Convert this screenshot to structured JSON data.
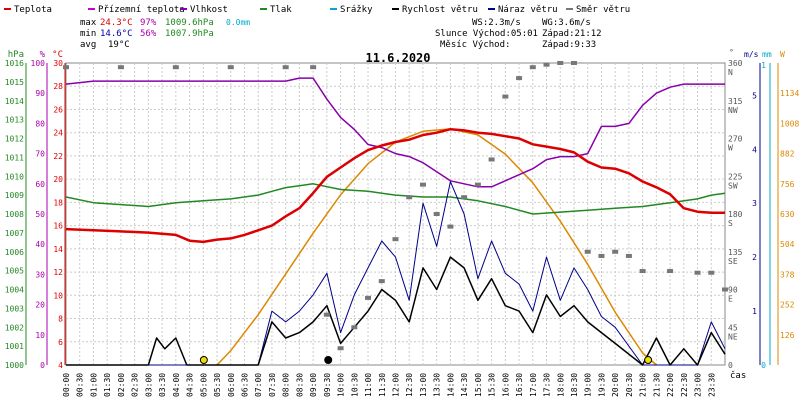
{
  "chart_data": {
    "type": "line",
    "title": "11.6.2020",
    "x_label": "čas",
    "x_range_hours": [
      0,
      24
    ],
    "x_ticks": [
      "00:00",
      "00:30",
      "01:00",
      "01:30",
      "02:00",
      "02:30",
      "03:00",
      "03:30",
      "04:00",
      "04:30",
      "05:00",
      "05:30",
      "06:00",
      "06:30",
      "07:00",
      "07:30",
      "08:00",
      "08:30",
      "09:00",
      "09:30",
      "10:00",
      "10:30",
      "11:00",
      "11:30",
      "12:00",
      "12:30",
      "13:00",
      "13:30",
      "14:00",
      "14:30",
      "15:00",
      "15:30",
      "16:00",
      "16:30",
      "17:00",
      "17:30",
      "18:00",
      "18:30",
      "19:00",
      "19:30",
      "20:00",
      "20:30",
      "21:00",
      "21:30",
      "22:00",
      "22:30",
      "23:00",
      "23:30"
    ],
    "legend": [
      {
        "label": "Teplota",
        "color": "#dd0000"
      },
      {
        "label": "Přízemní teplota",
        "color": "#cc00cc"
      },
      {
        "label": "Vlhkost",
        "color": "#8800aa"
      },
      {
        "label": "Tlak",
        "color": "#228822"
      },
      {
        "label": "Srážky",
        "color": "#00aacc"
      },
      {
        "label": "Rychlost větru",
        "color": "#000000"
      },
      {
        "label": "Náraz větru",
        "color": "#000088"
      },
      {
        "label": "Směr větru",
        "color": "#777777"
      }
    ],
    "stats": {
      "max": {
        "label": "max",
        "temp": "24.3°C",
        "hum": "97%",
        "press": "1009.6hPa",
        "rain": "0.0mm"
      },
      "min": {
        "label": "min",
        "temp": "14.6°C",
        "hum": "56%",
        "press": "1007.9hPa"
      },
      "avg": {
        "label": "avg",
        "temp": "19°C"
      }
    },
    "info": {
      "ws": "WS:2.3m/s",
      "wg": "WG:3.6m/s",
      "sun": "Slunce Východ:05:01",
      "sun_set": "Západ:21:12",
      "moon": "Měsíc  Východ:",
      "moon_set": "Západ:9:33"
    },
    "axes": {
      "press": {
        "label": "hPa",
        "ticks": [
          "1016",
          "1015",
          "1014",
          "1013",
          "1012",
          "1011",
          "1010",
          "1009",
          "1008",
          "1007",
          "1006",
          "1005",
          "1004",
          "1003",
          "1002",
          "1001",
          "1000"
        ],
        "range": [
          1000,
          1016
        ],
        "color": "#228822"
      },
      "hum": {
        "label": "%",
        "ticks": [
          "100",
          "90",
          "80",
          "70",
          "60",
          "50",
          "40",
          "30",
          "20",
          "10",
          "0"
        ],
        "range": [
          0,
          100
        ],
        "color": "#aa00aa"
      },
      "temp": {
        "label": "°C",
        "ticks": [
          "30",
          "28",
          "26",
          "24",
          "22",
          "20",
          "18",
          "16",
          "14",
          "12",
          "10",
          "8",
          "6",
          "4"
        ],
        "range": [
          4,
          30
        ],
        "color": "#dd0000"
      },
      "dir": {
        "label": "°",
        "ticks": [
          "360",
          "315",
          "270",
          "225",
          "180",
          "135",
          "90",
          "45",
          "0"
        ],
        "letters": [
          "N",
          "NW",
          "W",
          "SW",
          "S",
          "SE",
          "E",
          "NE",
          ""
        ],
        "range": [
          0,
          360
        ]
      },
      "wind": {
        "label": "m/s",
        "ticks": [
          "5",
          "4",
          "3",
          "2",
          "1"
        ],
        "range": [
          0,
          5.6
        ],
        "color": "#000088"
      },
      "rain": {
        "label": "mm",
        "ticks": [
          "1",
          "0"
        ],
        "color": "#00aacc"
      },
      "solar": {
        "label": "W",
        "ticks": [
          "1134",
          "1008",
          "882",
          "756",
          "630",
          "504",
          "378",
          "252",
          "126"
        ],
        "range": [
          0,
          1260
        ],
        "color": "#dd8800"
      }
    },
    "series": [
      {
        "name": "Teplota",
        "unit": "°C",
        "color": "#dd0000",
        "x": [
          0,
          1,
          2,
          3,
          4,
          4.5,
          5,
          5.5,
          6,
          6.5,
          7,
          7.5,
          8,
          8.5,
          9,
          9.5,
          10,
          10.5,
          11,
          11.5,
          12,
          12.5,
          13,
          13.5,
          14,
          14.5,
          15,
          15.5,
          16,
          16.5,
          17,
          17.5,
          18,
          18.5,
          19,
          19.5,
          20,
          20.5,
          21,
          21.5,
          22,
          22.5,
          23,
          23.5,
          24
        ],
        "y": [
          15.7,
          15.6,
          15.5,
          15.4,
          15.2,
          14.7,
          14.6,
          14.8,
          14.9,
          15.2,
          15.6,
          16.0,
          16.8,
          17.5,
          18.8,
          20.2,
          21.0,
          21.8,
          22.5,
          22.9,
          23.2,
          23.4,
          23.8,
          24.0,
          24.3,
          24.2,
          24.0,
          23.9,
          23.7,
          23.5,
          23.0,
          22.8,
          22.6,
          22.3,
          21.5,
          21.0,
          20.9,
          20.5,
          19.8,
          19.3,
          18.7,
          17.5,
          17.2,
          17.1,
          17.1
        ]
      },
      {
        "name": "Vlhkost",
        "unit": "%",
        "color": "#8800aa",
        "x": [
          0,
          1,
          2,
          3,
          4,
          5,
          6,
          7,
          8,
          8.5,
          9,
          9.5,
          10,
          10.5,
          11,
          11.5,
          12,
          12.5,
          13,
          13.5,
          14,
          14.5,
          15,
          15.5,
          16,
          16.5,
          17,
          17.5,
          18,
          18.5,
          19,
          19.5,
          20,
          20.5,
          21,
          21.5,
          22,
          22.5,
          23,
          23.5,
          24
        ],
        "y": [
          93,
          94,
          94,
          94,
          94,
          94,
          94,
          94,
          94,
          95,
          95,
          88,
          82,
          78,
          73,
          72,
          70,
          69,
          67,
          64,
          61,
          60,
          59,
          59,
          61,
          63,
          65,
          68,
          69,
          69,
          70,
          79,
          79,
          80,
          86,
          90,
          92,
          93,
          93,
          93,
          93
        ]
      },
      {
        "name": "Tlak",
        "unit": "hPa",
        "color": "#228822",
        "x": [
          0,
          1,
          2,
          3,
          4,
          5,
          6,
          7,
          7.5,
          8,
          8.5,
          9,
          10,
          11,
          12,
          13,
          14,
          15,
          16,
          17,
          18,
          19,
          20,
          21,
          22,
          23,
          23.5,
          24
        ],
        "y": [
          1008.9,
          1008.6,
          1008.5,
          1008.4,
          1008.6,
          1008.7,
          1008.8,
          1009.0,
          1009.2,
          1009.4,
          1009.5,
          1009.6,
          1009.3,
          1009.2,
          1009.0,
          1008.9,
          1008.9,
          1008.7,
          1008.4,
          1008.0,
          1008.1,
          1008.2,
          1008.3,
          1008.4,
          1008.6,
          1008.8,
          1009.0,
          1009.1
        ]
      },
      {
        "name": "Rychlost větru",
        "unit": "m/s",
        "color": "#000000",
        "x": [
          0,
          1,
          2,
          3,
          3.3,
          3.6,
          4,
          4.4,
          5,
          6,
          7,
          7.5,
          8,
          8.5,
          9,
          9.5,
          10,
          10.5,
          11,
          11.5,
          12,
          12.5,
          13,
          13.5,
          14,
          14.5,
          15,
          15.5,
          16,
          16.5,
          17,
          17.5,
          18,
          18.5,
          19,
          19.5,
          20,
          21,
          21.5,
          22,
          22.5,
          23,
          23.5,
          24
        ],
        "y": [
          0,
          0,
          0,
          0,
          0.5,
          0.3,
          0.5,
          0,
          0,
          0,
          0,
          0.8,
          0.5,
          0.6,
          0.8,
          1.1,
          0.4,
          0.7,
          1.0,
          1.4,
          1.2,
          0.8,
          1.8,
          1.4,
          2.0,
          1.8,
          1.2,
          1.6,
          1.1,
          1.0,
          0.6,
          1.3,
          0.9,
          1.1,
          0.8,
          0.6,
          0.4,
          0,
          0.5,
          0,
          0.3,
          0,
          0.6,
          0.2
        ]
      },
      {
        "name": "Náraz větru",
        "unit": "m/s",
        "color": "#000088",
        "x": [
          0,
          1,
          2,
          3,
          4,
          5,
          6,
          7,
          7.5,
          8,
          8.5,
          9,
          9.5,
          10,
          10.5,
          11,
          11.5,
          12,
          12.5,
          13,
          13.5,
          14,
          14.5,
          15,
          15.5,
          16,
          16.5,
          17,
          17.5,
          18,
          18.5,
          19,
          19.5,
          20,
          21,
          22,
          23,
          23.5,
          24
        ],
        "y": [
          0,
          0,
          0,
          0,
          0,
          0,
          0,
          0,
          1.0,
          0.8,
          1.0,
          1.3,
          1.7,
          0.6,
          1.3,
          1.8,
          2.3,
          2.0,
          1.2,
          3.0,
          2.2,
          3.4,
          2.8,
          1.6,
          2.3,
          1.7,
          1.5,
          1.0,
          2.0,
          1.2,
          1.8,
          1.4,
          0.9,
          0.7,
          0,
          0,
          0,
          0.8,
          0.3
        ]
      },
      {
        "name": "Směr větru",
        "unit": "°",
        "color": "#777777",
        "x": [
          0,
          2,
          4,
          6,
          8,
          9,
          9.5,
          10,
          10.5,
          11,
          11.5,
          12,
          12.5,
          13,
          13.5,
          14,
          14.5,
          15,
          15.5,
          16,
          16.5,
          17,
          17.5,
          18,
          18.5,
          19,
          19.5,
          20,
          20.5,
          21,
          22,
          23,
          23.5,
          24
        ],
        "y": [
          355,
          355,
          355,
          355,
          355,
          355,
          60,
          20,
          45,
          80,
          100,
          150,
          200,
          215,
          180,
          165,
          200,
          215,
          245,
          320,
          342,
          355,
          358,
          360,
          360,
          135,
          130,
          135,
          130,
          112,
          112,
          110,
          110,
          90
        ]
      }
    ],
    "solar_curve": {
      "name": "solar",
      "x": [
        5.5,
        6,
        7,
        8,
        9,
        10,
        11,
        12,
        13,
        14,
        15,
        16,
        17,
        18,
        19,
        20,
        21,
        21.5
      ],
      "y": [
        0,
        60,
        210,
        380,
        550,
        710,
        840,
        930,
        975,
        985,
        960,
        880,
        760,
        600,
        420,
        220,
        50,
        0
      ]
    }
  }
}
